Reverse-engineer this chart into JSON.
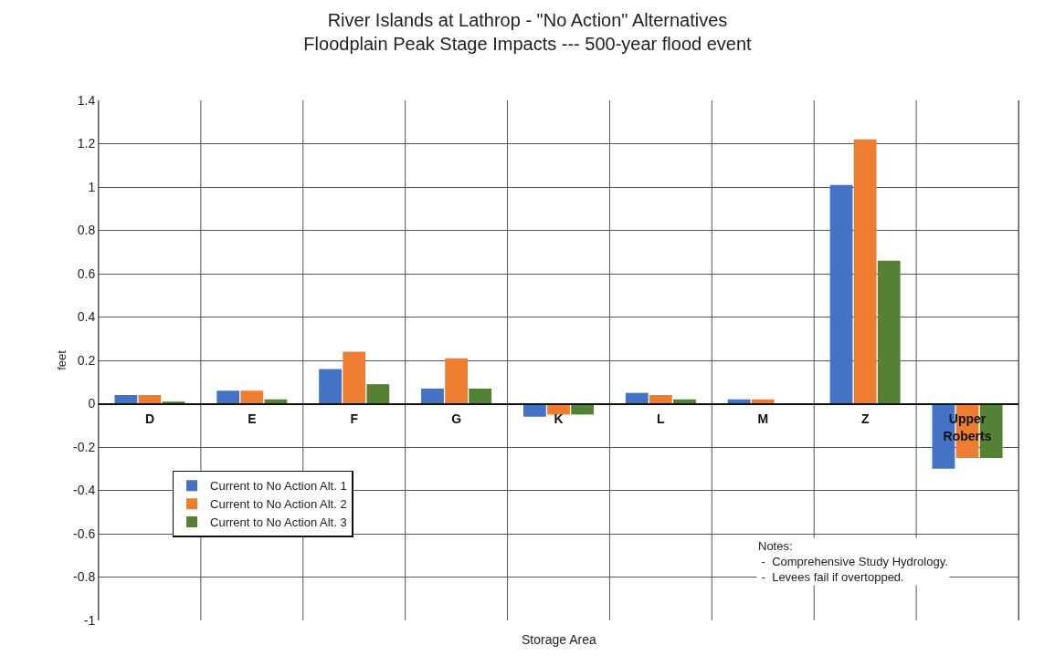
{
  "chart_data": {
    "type": "bar",
    "title": "River Islands at Lathrop - \"No Action\" Alternatives\nFloodplain Peak Stage Impacts --- 500-year flood event",
    "xlabel": "Storage Area",
    "ylabel": "feet",
    "categories": [
      "D",
      "E",
      "F",
      "G",
      "K",
      "L",
      "M",
      "Z",
      "Upper Roberts"
    ],
    "series": [
      {
        "name": "Current to No Action Alt. 1",
        "color": "#4472c4",
        "values": [
          0.04,
          0.06,
          0.16,
          0.07,
          -0.06,
          0.05,
          0.02,
          1.01,
          -0.3
        ]
      },
      {
        "name": "Current to No Action Alt. 2",
        "color": "#ed7d31",
        "values": [
          0.04,
          0.06,
          0.24,
          0.21,
          -0.05,
          0.04,
          0.02,
          1.22,
          -0.25
        ]
      },
      {
        "name": "Current to No Action Alt. 3",
        "color": "#548235",
        "values": [
          0.01,
          0.02,
          0.09,
          0.07,
          -0.05,
          0.02,
          0,
          0.66,
          -0.25
        ]
      }
    ],
    "ylim": [
      -1,
      1.4
    ],
    "yticks": [
      -1,
      -0.8,
      -0.6,
      -0.4,
      -0.2,
      0,
      0.2,
      0.4,
      0.6,
      0.8,
      1,
      1.2,
      1.4
    ],
    "grid": true,
    "legend": "bottom left",
    "annotations": [
      "Notes:\n -  Comprehensive Study Hydrology.\n -  Levees fail if overtopped."
    ]
  }
}
